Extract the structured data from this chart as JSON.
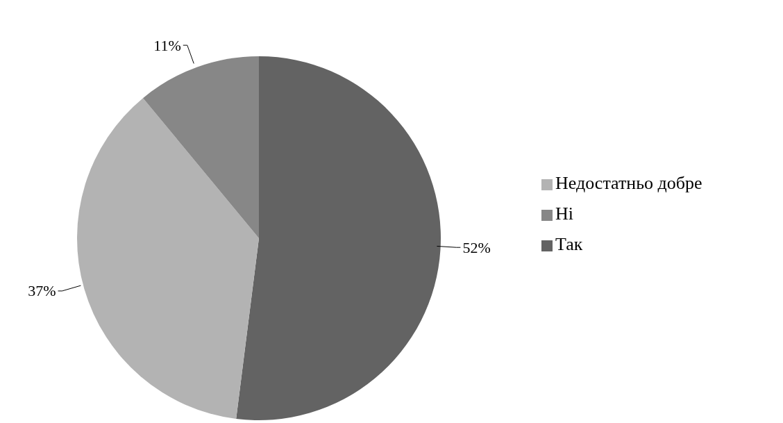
{
  "chart_data": {
    "type": "pie",
    "categories": [
      "Так",
      "Недостатньо добре",
      "Ні"
    ],
    "values": [
      52,
      37,
      11
    ],
    "colors": [
      "#636363",
      "#b3b3b3",
      "#878787"
    ],
    "value_labels": [
      "52%",
      "37%",
      "11%"
    ],
    "legend": "right"
  }
}
